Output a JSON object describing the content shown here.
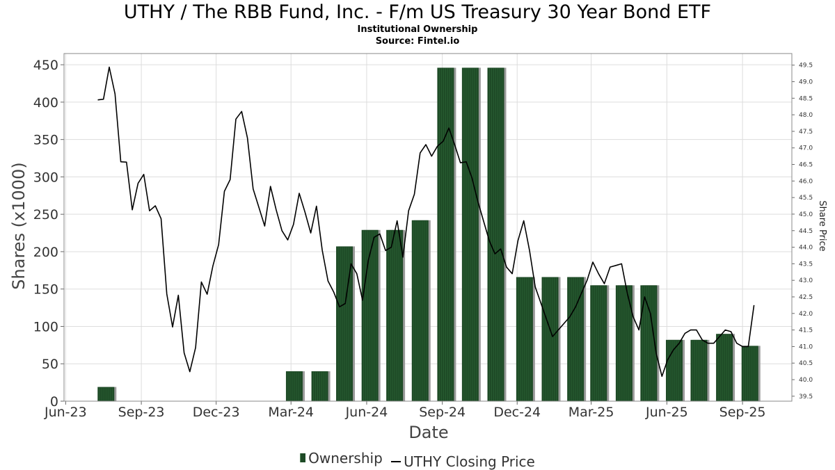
{
  "header": {
    "title": "UTHY / The RBB Fund, Inc. - F/m US Treasury 30 Year Bond ETF",
    "subtitle": "Institutional Ownership",
    "source": "Source: Fintel.io"
  },
  "legend": {
    "ownership_label": "Ownership",
    "price_label": "UTHY Closing Price"
  },
  "colors": {
    "bar_fill": "#1e4a26",
    "bar_shadow": "#9a9a9a",
    "line": "#000000",
    "grid": "#dddddd"
  },
  "chart_data": {
    "type": "bar",
    "title": "UTHY / The RBB Fund, Inc. - F/m US Treasury 30 Year Bond ETF",
    "subtitle": "Institutional Ownership",
    "xlabel": "Date",
    "ylabel": "Shares (x1000)",
    "y2label": "Share Price",
    "xlim": [
      "2023-05-30",
      "2025-10-31"
    ],
    "ylim": [
      0,
      465
    ],
    "y2lim": [
      39.35,
      49.85
    ],
    "grid": true,
    "legend_position": "bottom-center",
    "x_ticks": [
      {
        "date": "2023-06-01",
        "label": "Jun-23"
      },
      {
        "date": "2023-09-01",
        "label": "Sep-23"
      },
      {
        "date": "2023-12-01",
        "label": "Dec-23"
      },
      {
        "date": "2024-03-01",
        "label": "Mar-24"
      },
      {
        "date": "2024-06-01",
        "label": "Jun-24"
      },
      {
        "date": "2024-09-01",
        "label": "Sep-24"
      },
      {
        "date": "2024-12-01",
        "label": "Dec-24"
      },
      {
        "date": "2025-03-01",
        "label": "Mar-25"
      },
      {
        "date": "2025-06-01",
        "label": "Jun-25"
      },
      {
        "date": "2025-09-01",
        "label": "Sep-25"
      }
    ],
    "y_ticks": [
      "0",
      "50",
      "100",
      "150",
      "200",
      "250",
      "300",
      "350",
      "400",
      "450"
    ],
    "y2_ticks": [
      "39.5",
      "40.0",
      "40.5",
      "41.0",
      "41.5",
      "42.0",
      "42.5",
      "43.0",
      "43.5",
      "44.0",
      "44.5",
      "45.0",
      "45.5",
      "46.0",
      "46.5",
      "47.0",
      "47.5",
      "48.0",
      "48.5",
      "49.0",
      "49.5"
    ],
    "series": [
      {
        "name": "Ownership",
        "type": "bar",
        "points": [
          {
            "date": "2023-07-20",
            "value": 19
          },
          {
            "date": "2024-03-05",
            "value": 40
          },
          {
            "date": "2024-04-05",
            "value": 40
          },
          {
            "date": "2024-05-05",
            "value": 207
          },
          {
            "date": "2024-06-05",
            "value": 229
          },
          {
            "date": "2024-07-05",
            "value": 229
          },
          {
            "date": "2024-08-05",
            "value": 242
          },
          {
            "date": "2024-09-05",
            "value": 446
          },
          {
            "date": "2024-10-05",
            "value": 446
          },
          {
            "date": "2024-11-05",
            "value": 446
          },
          {
            "date": "2024-12-10",
            "value": 166
          },
          {
            "date": "2025-01-10",
            "value": 166
          },
          {
            "date": "2025-02-10",
            "value": 166
          },
          {
            "date": "2025-03-10",
            "value": 155
          },
          {
            "date": "2025-04-10",
            "value": 155
          },
          {
            "date": "2025-05-10",
            "value": 155
          },
          {
            "date": "2025-06-10",
            "value": 82
          },
          {
            "date": "2025-07-10",
            "value": 82
          },
          {
            "date": "2025-08-10",
            "value": 90
          },
          {
            "date": "2025-09-10",
            "value": 74
          }
        ]
      },
      {
        "name": "UTHY Closing Price",
        "type": "line",
        "axis": "right",
        "points": [
          {
            "date": "2023-07-10",
            "value": 48.45
          },
          {
            "date": "2023-07-17",
            "value": 48.47
          },
          {
            "date": "2023-07-24",
            "value": 49.44
          },
          {
            "date": "2023-07-31",
            "value": 48.63
          },
          {
            "date": "2023-08-07",
            "value": 46.58
          },
          {
            "date": "2023-08-14",
            "value": 46.57
          },
          {
            "date": "2023-08-21",
            "value": 45.13
          },
          {
            "date": "2023-08-28",
            "value": 45.93
          },
          {
            "date": "2023-09-04",
            "value": 46.2
          },
          {
            "date": "2023-09-11",
            "value": 45.1
          },
          {
            "date": "2023-09-18",
            "value": 45.25
          },
          {
            "date": "2023-09-25",
            "value": 44.86
          },
          {
            "date": "2023-10-02",
            "value": 42.59
          },
          {
            "date": "2023-10-09",
            "value": 41.59
          },
          {
            "date": "2023-10-16",
            "value": 42.55
          },
          {
            "date": "2023-10-23",
            "value": 40.81
          },
          {
            "date": "2023-10-30",
            "value": 40.24
          },
          {
            "date": "2023-11-06",
            "value": 40.97
          },
          {
            "date": "2023-11-13",
            "value": 42.95
          },
          {
            "date": "2023-11-20",
            "value": 42.58
          },
          {
            "date": "2023-11-27",
            "value": 43.43
          },
          {
            "date": "2023-12-04",
            "value": 44.08
          },
          {
            "date": "2023-12-11",
            "value": 45.69
          },
          {
            "date": "2023-12-18",
            "value": 46.04
          },
          {
            "date": "2023-12-25",
            "value": 47.87
          },
          {
            "date": "2024-01-01",
            "value": 48.1
          },
          {
            "date": "2024-01-08",
            "value": 47.3
          },
          {
            "date": "2024-01-15",
            "value": 45.76
          },
          {
            "date": "2024-01-22",
            "value": 45.2
          },
          {
            "date": "2024-01-29",
            "value": 44.64
          },
          {
            "date": "2024-02-05",
            "value": 45.84
          },
          {
            "date": "2024-02-12",
            "value": 45.13
          },
          {
            "date": "2024-02-19",
            "value": 44.5
          },
          {
            "date": "2024-02-26",
            "value": 44.22
          },
          {
            "date": "2024-03-04",
            "value": 44.69
          },
          {
            "date": "2024-03-11",
            "value": 45.63
          },
          {
            "date": "2024-03-18",
            "value": 45.06
          },
          {
            "date": "2024-03-25",
            "value": 44.43
          },
          {
            "date": "2024-04-01",
            "value": 45.24
          },
          {
            "date": "2024-04-08",
            "value": 43.91
          },
          {
            "date": "2024-04-15",
            "value": 42.98
          },
          {
            "date": "2024-04-22",
            "value": 42.64
          },
          {
            "date": "2024-04-29",
            "value": 42.2
          },
          {
            "date": "2024-05-06",
            "value": 42.3
          },
          {
            "date": "2024-05-13",
            "value": 43.5
          },
          {
            "date": "2024-05-20",
            "value": 43.2
          },
          {
            "date": "2024-05-27",
            "value": 42.4
          },
          {
            "date": "2024-06-03",
            "value": 43.6
          },
          {
            "date": "2024-06-10",
            "value": 44.3
          },
          {
            "date": "2024-06-17",
            "value": 44.4
          },
          {
            "date": "2024-06-24",
            "value": 43.9
          },
          {
            "date": "2024-07-01",
            "value": 44.0
          },
          {
            "date": "2024-07-08",
            "value": 44.8
          },
          {
            "date": "2024-07-15",
            "value": 43.7
          },
          {
            "date": "2024-07-22",
            "value": 45.1
          },
          {
            "date": "2024-07-29",
            "value": 45.6
          },
          {
            "date": "2024-08-05",
            "value": 46.85
          },
          {
            "date": "2024-08-12",
            "value": 47.1
          },
          {
            "date": "2024-08-19",
            "value": 46.75
          },
          {
            "date": "2024-08-26",
            "value": 47.05
          },
          {
            "date": "2024-09-02",
            "value": 47.2
          },
          {
            "date": "2024-09-09",
            "value": 47.6
          },
          {
            "date": "2024-09-16",
            "value": 47.1
          },
          {
            "date": "2024-09-23",
            "value": 46.55
          },
          {
            "date": "2024-09-30",
            "value": 46.58
          },
          {
            "date": "2024-10-07",
            "value": 46.1
          },
          {
            "date": "2024-10-14",
            "value": 45.4
          },
          {
            "date": "2024-10-21",
            "value": 44.8
          },
          {
            "date": "2024-10-28",
            "value": 44.2
          },
          {
            "date": "2024-11-04",
            "value": 43.8
          },
          {
            "date": "2024-11-11",
            "value": 43.95
          },
          {
            "date": "2024-11-18",
            "value": 43.4
          },
          {
            "date": "2024-11-25",
            "value": 43.2
          },
          {
            "date": "2024-12-02",
            "value": 44.2
          },
          {
            "date": "2024-12-09",
            "value": 44.8
          },
          {
            "date": "2024-12-16",
            "value": 43.9
          },
          {
            "date": "2024-12-23",
            "value": 42.8
          },
          {
            "date": "2024-12-30",
            "value": 42.3
          },
          {
            "date": "2025-01-06",
            "value": 41.8
          },
          {
            "date": "2025-01-13",
            "value": 41.3
          },
          {
            "date": "2025-01-20",
            "value": 41.5
          },
          {
            "date": "2025-01-27",
            "value": 41.7
          },
          {
            "date": "2025-02-03",
            "value": 41.9
          },
          {
            "date": "2025-02-10",
            "value": 42.2
          },
          {
            "date": "2025-02-17",
            "value": 42.6
          },
          {
            "date": "2025-02-24",
            "value": 43.0
          },
          {
            "date": "2025-03-03",
            "value": 43.55
          },
          {
            "date": "2025-03-10",
            "value": 43.2
          },
          {
            "date": "2025-03-17",
            "value": 42.9
          },
          {
            "date": "2025-03-24",
            "value": 43.4
          },
          {
            "date": "2025-03-31",
            "value": 43.45
          },
          {
            "date": "2025-04-07",
            "value": 43.5
          },
          {
            "date": "2025-04-14",
            "value": 42.6
          },
          {
            "date": "2025-04-21",
            "value": 41.9
          },
          {
            "date": "2025-04-28",
            "value": 41.5
          },
          {
            "date": "2025-05-05",
            "value": 42.5
          },
          {
            "date": "2025-05-12",
            "value": 42.0
          },
          {
            "date": "2025-05-19",
            "value": 40.8
          },
          {
            "date": "2025-05-26",
            "value": 40.1
          },
          {
            "date": "2025-06-02",
            "value": 40.6
          },
          {
            "date": "2025-06-09",
            "value": 40.9
          },
          {
            "date": "2025-06-16",
            "value": 41.1
          },
          {
            "date": "2025-06-23",
            "value": 41.4
          },
          {
            "date": "2025-06-30",
            "value": 41.5
          },
          {
            "date": "2025-07-07",
            "value": 41.5
          },
          {
            "date": "2025-07-14",
            "value": 41.2
          },
          {
            "date": "2025-07-21",
            "value": 41.1
          },
          {
            "date": "2025-07-28",
            "value": 41.1
          },
          {
            "date": "2025-08-04",
            "value": 41.3
          },
          {
            "date": "2025-08-11",
            "value": 41.5
          },
          {
            "date": "2025-08-18",
            "value": 41.45
          },
          {
            "date": "2025-08-25",
            "value": 41.1
          },
          {
            "date": "2025-09-01",
            "value": 41.0
          },
          {
            "date": "2025-09-08",
            "value": 41.0
          },
          {
            "date": "2025-09-15",
            "value": 42.25
          }
        ]
      }
    ]
  }
}
